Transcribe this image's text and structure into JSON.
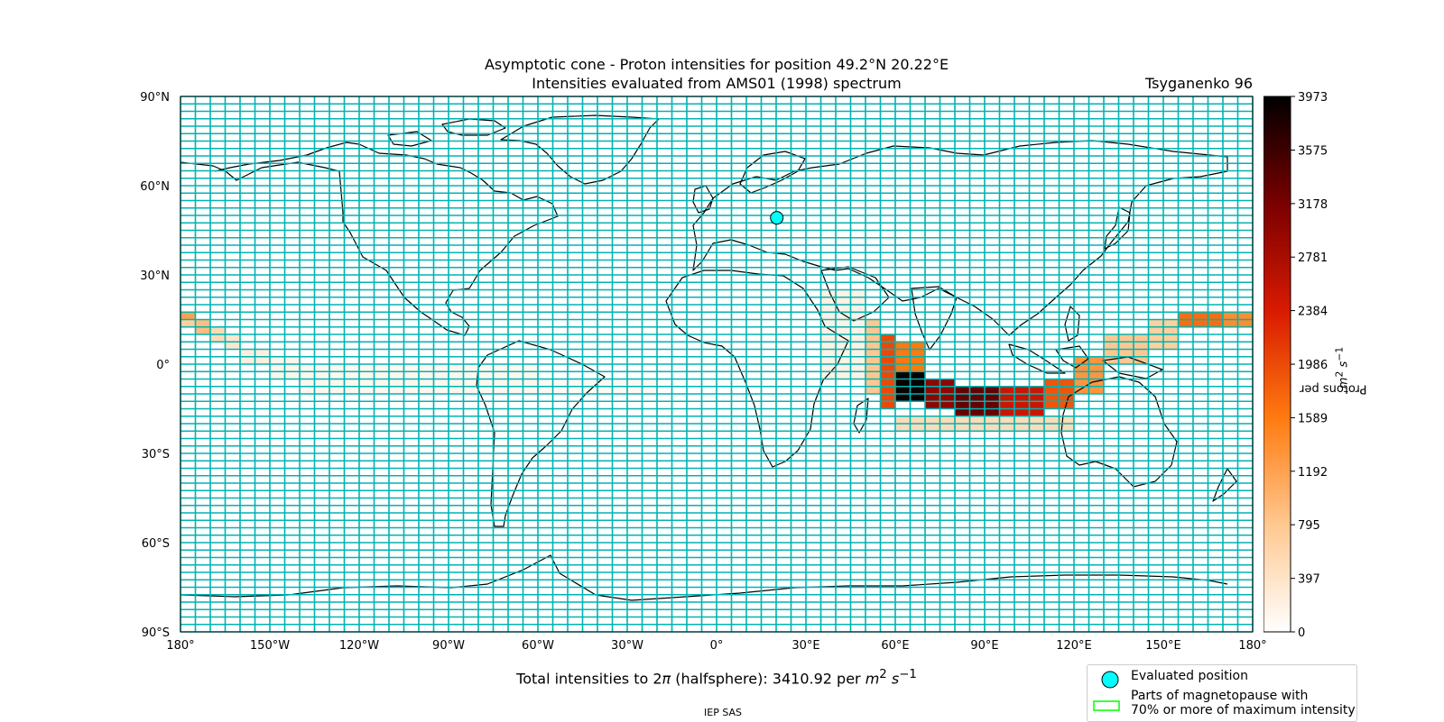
{
  "title": {
    "line1": "Asymptotic cone - Proton intensities for position 49.2°N 20.22°E",
    "line2": "Intensities evaluated from AMS01 (1998) spectrum",
    "model": "Tsyganenko 96"
  },
  "footer": "IEP SAS",
  "total_intensity": {
    "prefix": "Total intensities to 2",
    "pi": "π",
    "middle": " (halfsphere): 3410.92 per ",
    "unit_m": "m",
    "exp2": "2",
    "unit_s": " s",
    "expm1": "−1"
  },
  "legend": {
    "evaluated": "Evaluated position",
    "magnetopause_line1": "Parts of magnetopause with",
    "magnetopause_line2": "70% or more of maximum intensity"
  },
  "colors": {
    "grid": "#00b3b3",
    "marker": "#00ffff",
    "magnetopause": "#00ff00",
    "coast": "#000000"
  },
  "chart_data": {
    "type": "heatmap",
    "projection": "equirectangular",
    "xlim": [
      -180,
      180
    ],
    "ylim": [
      -90,
      90
    ],
    "x_ticks": [
      "180°",
      "150°W",
      "120°W",
      "90°W",
      "60°W",
      "30°W",
      "0°",
      "30°E",
      "60°E",
      "90°E",
      "120°E",
      "150°E",
      "180°"
    ],
    "y_ticks": [
      "90°N",
      "60°N",
      "30°N",
      "0°",
      "30°S",
      "60°S",
      "90°S"
    ],
    "grid": true,
    "cell_size_deg": {
      "lon": 5,
      "lat": 2.5
    },
    "evaluated_position": {
      "lat": 49.2,
      "lon": 20.22
    },
    "colorbar": {
      "label_text": "Protons per ",
      "label_m": "m",
      "label_exp2": "2",
      "label_s": " s",
      "label_expm1": "−1",
      "min": 0,
      "max": 3973,
      "ticks": [
        "0",
        "397",
        "795",
        "1192",
        "1589",
        "1986",
        "2384",
        "2781",
        "3178",
        "3575",
        "3973"
      ],
      "colormap": "gist_heat_r"
    },
    "intensity_bands": [
      {
        "lon": [
          -180,
          -175
        ],
        "lat": [
          15,
          17.5
        ],
        "value": 1200
      },
      {
        "lon": [
          -180,
          -175
        ],
        "lat": [
          12.5,
          15
        ],
        "value": 700
      },
      {
        "lon": [
          -175,
          -170
        ],
        "lat": [
          10,
          15
        ],
        "value": 900
      },
      {
        "lon": [
          -170,
          -165
        ],
        "lat": [
          7.5,
          12.5
        ],
        "value": 500
      },
      {
        "lon": [
          -165,
          -160
        ],
        "lat": [
          5,
          10
        ],
        "value": 350
      },
      {
        "lon": [
          -160,
          -150
        ],
        "lat": [
          0,
          5
        ],
        "value": 250
      },
      {
        "lon": [
          -150,
          -140
        ],
        "lat": [
          -5,
          2.5
        ],
        "value": 150
      },
      {
        "lon": [
          -140,
          -60
        ],
        "lat": [
          -10,
          0
        ],
        "value": 120
      },
      {
        "lon": [
          -60,
          -20
        ],
        "lat": [
          -10,
          -5
        ],
        "value": 80
      },
      {
        "lon": [
          35,
          50
        ],
        "lat": [
          -5,
          25
        ],
        "value": 200
      },
      {
        "lon": [
          50,
          55
        ],
        "lat": [
          -10,
          15
        ],
        "value": 800
      },
      {
        "lon": [
          55,
          60
        ],
        "lat": [
          -15,
          10
        ],
        "value": 2000
      },
      {
        "lon": [
          60,
          70
        ],
        "lat": [
          -12.5,
          -2.5
        ],
        "value": 3900
      },
      {
        "lon": [
          60,
          70
        ],
        "lat": [
          -2.5,
          7.5
        ],
        "value": 1600
      },
      {
        "lon": [
          70,
          80
        ],
        "lat": [
          -15,
          -5
        ],
        "value": 3000
      },
      {
        "lon": [
          80,
          95
        ],
        "lat": [
          -17.5,
          -7.5
        ],
        "value": 3300
      },
      {
        "lon": [
          95,
          110
        ],
        "lat": [
          -17.5,
          -7.5
        ],
        "value": 2500
      },
      {
        "lon": [
          110,
          120
        ],
        "lat": [
          -15,
          -5
        ],
        "value": 1900
      },
      {
        "lon": [
          120,
          130
        ],
        "lat": [
          -10,
          2.5
        ],
        "value": 1300
      },
      {
        "lon": [
          130,
          145
        ],
        "lat": [
          0,
          10
        ],
        "value": 800
      },
      {
        "lon": [
          145,
          155
        ],
        "lat": [
          5,
          15
        ],
        "value": 700
      },
      {
        "lon": [
          155,
          170
        ],
        "lat": [
          12.5,
          17.5
        ],
        "value": 1700
      },
      {
        "lon": [
          170,
          180
        ],
        "lat": [
          12.5,
          17.5
        ],
        "value": 1400
      },
      {
        "lon": [
          60,
          120
        ],
        "lat": [
          -22.5,
          -17.5
        ],
        "value": 500
      }
    ]
  }
}
